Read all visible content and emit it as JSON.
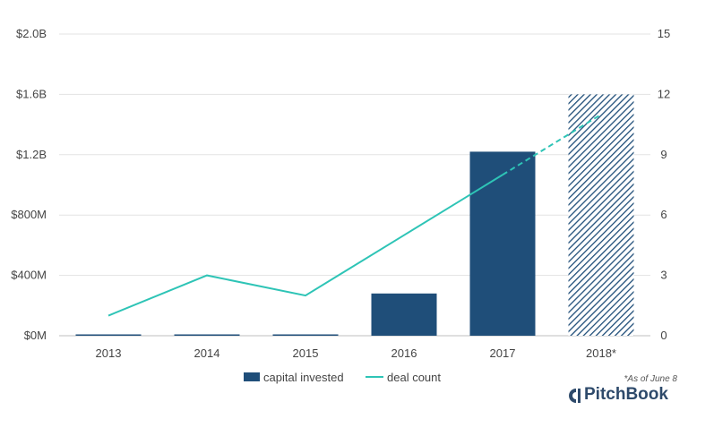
{
  "chart_data": {
    "type": "bar",
    "categories": [
      "2013",
      "2014",
      "2015",
      "2016",
      "2017",
      "2018*"
    ],
    "series": [
      {
        "name": "capital invested",
        "type": "bar",
        "axis": "left",
        "values": [
          0.005,
          0.005,
          0.005,
          0.28,
          1.22,
          1.6
        ],
        "color": "#1f4e79",
        "hatched_categories": [
          "2018*"
        ]
      },
      {
        "name": "deal count",
        "type": "line",
        "axis": "right",
        "values": [
          1,
          3,
          2,
          5,
          8,
          11
        ],
        "color": "#2ec4b6",
        "dashed_from_category": "2017"
      }
    ],
    "y_left": {
      "ticks": [
        0,
        0.4,
        0.8,
        1.2,
        1.6,
        2.0
      ],
      "tick_labels": [
        "$0M",
        "$400M",
        "$800M",
        "$1.2B",
        "$1.6B",
        "$2.0B"
      ],
      "ylim": [
        0,
        2.0
      ]
    },
    "y_right": {
      "ticks": [
        0,
        3,
        6,
        9,
        12,
        15
      ],
      "tick_labels": [
        "0",
        "3",
        "6",
        "9",
        "12",
        "15"
      ],
      "ylim": [
        0,
        15
      ]
    },
    "grid": true,
    "legend_position": "bottom",
    "annotation": "*As of June 8",
    "title": ""
  },
  "brand": {
    "name": "PitchBook"
  }
}
